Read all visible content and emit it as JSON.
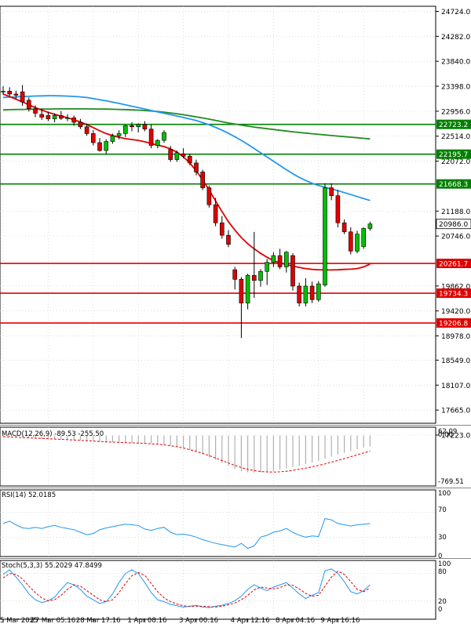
{
  "chart_data": [
    {
      "type": "candlestick",
      "panel": "price",
      "y_ticks": [
        24724.0,
        24282.0,
        23840.0,
        23398.0,
        22956.0,
        22514.0,
        22072.0,
        21188.0,
        20746.0,
        19862.0,
        19420.0,
        18978.0,
        18549.0,
        18107.0,
        17665.0,
        17223.0
      ],
      "ylim": [
        17223,
        24724
      ],
      "current_price": "20986.0",
      "grid": true,
      "horizontal_levels": [
        {
          "label": "22723.2",
          "value": 22723.2,
          "color": "#008000"
        },
        {
          "label": "22195.7",
          "value": 22195.7,
          "color": "#008000"
        },
        {
          "label": "21668.3",
          "value": 21668.3,
          "color": "#008000"
        },
        {
          "label": "20261.7",
          "value": 20261.7,
          "color": "#e00000"
        },
        {
          "label": "19734.3",
          "value": 19734.3,
          "color": "#e00000"
        },
        {
          "label": "19206.8",
          "value": 19206.8,
          "color": "#e00000"
        }
      ],
      "candles": [
        {
          "o": 23300,
          "h": 23400,
          "l": 23250,
          "c": 23310
        },
        {
          "o": 23310,
          "h": 23380,
          "l": 23220,
          "c": 23260
        },
        {
          "o": 23260,
          "h": 23320,
          "l": 23180,
          "c": 23240
        },
        {
          "o": 23300,
          "h": 23420,
          "l": 23050,
          "c": 23120
        },
        {
          "o": 23150,
          "h": 23200,
          "l": 22950,
          "c": 23000
        },
        {
          "o": 23000,
          "h": 23060,
          "l": 22850,
          "c": 22920
        },
        {
          "o": 22900,
          "h": 23000,
          "l": 22800,
          "c": 22850
        },
        {
          "o": 22880,
          "h": 22950,
          "l": 22780,
          "c": 22820
        },
        {
          "o": 22820,
          "h": 22920,
          "l": 22760,
          "c": 22880
        },
        {
          "o": 22880,
          "h": 22960,
          "l": 22800,
          "c": 22830
        },
        {
          "o": 22830,
          "h": 22900,
          "l": 22780,
          "c": 22840
        },
        {
          "o": 22840,
          "h": 22880,
          "l": 22700,
          "c": 22760
        },
        {
          "o": 22760,
          "h": 22820,
          "l": 22640,
          "c": 22680
        },
        {
          "o": 22680,
          "h": 22740,
          "l": 22520,
          "c": 22560
        },
        {
          "o": 22560,
          "h": 22620,
          "l": 22350,
          "c": 22400
        },
        {
          "o": 22400,
          "h": 22480,
          "l": 22240,
          "c": 22260
        },
        {
          "o": 22260,
          "h": 22460,
          "l": 22200,
          "c": 22420
        },
        {
          "o": 22420,
          "h": 22560,
          "l": 22380,
          "c": 22520
        },
        {
          "o": 22520,
          "h": 22620,
          "l": 22460,
          "c": 22560
        },
        {
          "o": 22560,
          "h": 22720,
          "l": 22500,
          "c": 22700
        },
        {
          "o": 22700,
          "h": 22760,
          "l": 22600,
          "c": 22680
        },
        {
          "o": 22680,
          "h": 22740,
          "l": 22580,
          "c": 22720
        },
        {
          "o": 22720,
          "h": 22780,
          "l": 22600,
          "c": 22640
        },
        {
          "o": 22640,
          "h": 22720,
          "l": 22300,
          "c": 22350
        },
        {
          "o": 22350,
          "h": 22460,
          "l": 22300,
          "c": 22440
        },
        {
          "o": 22440,
          "h": 22620,
          "l": 22400,
          "c": 22580
        },
        {
          "o": 22280,
          "h": 22340,
          "l": 22060,
          "c": 22100
        },
        {
          "o": 22100,
          "h": 22260,
          "l": 22060,
          "c": 22220
        },
        {
          "o": 22200,
          "h": 22300,
          "l": 22120,
          "c": 22160
        },
        {
          "o": 22160,
          "h": 22200,
          "l": 22000,
          "c": 22040
        },
        {
          "o": 22040,
          "h": 22100,
          "l": 21820,
          "c": 21880
        },
        {
          "o": 21880,
          "h": 21920,
          "l": 21560,
          "c": 21600
        },
        {
          "o": 21600,
          "h": 21640,
          "l": 21250,
          "c": 21300
        },
        {
          "o": 21300,
          "h": 21420,
          "l": 20920,
          "c": 20980
        },
        {
          "o": 20980,
          "h": 21100,
          "l": 20700,
          "c": 20760
        },
        {
          "o": 20760,
          "h": 20850,
          "l": 20550,
          "c": 20600
        },
        {
          "o": 20150,
          "h": 20200,
          "l": 19800,
          "c": 19980
        },
        {
          "o": 19980,
          "h": 20020,
          "l": 18940,
          "c": 19560
        },
        {
          "o": 19560,
          "h": 20080,
          "l": 19450,
          "c": 20050
        },
        {
          "o": 20050,
          "h": 20820,
          "l": 19650,
          "c": 19960
        },
        {
          "o": 19960,
          "h": 20160,
          "l": 19850,
          "c": 20120
        },
        {
          "o": 20120,
          "h": 20340,
          "l": 19880,
          "c": 20280
        },
        {
          "o": 20280,
          "h": 20460,
          "l": 20200,
          "c": 20400
        },
        {
          "o": 20400,
          "h": 20520,
          "l": 20160,
          "c": 20200
        },
        {
          "o": 20200,
          "h": 20480,
          "l": 20100,
          "c": 20460
        },
        {
          "o": 20400,
          "h": 20440,
          "l": 19780,
          "c": 19860
        },
        {
          "o": 19860,
          "h": 19920,
          "l": 19500,
          "c": 19560
        },
        {
          "o": 19560,
          "h": 20000,
          "l": 19500,
          "c": 19860
        },
        {
          "o": 19860,
          "h": 19940,
          "l": 19560,
          "c": 19620
        },
        {
          "o": 19620,
          "h": 19950,
          "l": 19580,
          "c": 19900
        },
        {
          "o": 19880,
          "h": 21680,
          "l": 19850,
          "c": 21600
        },
        {
          "o": 21600,
          "h": 21680,
          "l": 21380,
          "c": 21460
        },
        {
          "o": 21460,
          "h": 21560,
          "l": 20900,
          "c": 20980
        },
        {
          "o": 20980,
          "h": 21040,
          "l": 20780,
          "c": 20820
        },
        {
          "o": 20820,
          "h": 20900,
          "l": 20420,
          "c": 20480
        },
        {
          "o": 20480,
          "h": 20840,
          "l": 20440,
          "c": 20780
        },
        {
          "o": 20560,
          "h": 20900,
          "l": 20520,
          "c": 20880
        },
        {
          "o": 20880,
          "h": 21000,
          "l": 20840,
          "c": 20960
        }
      ],
      "ma_fast": {
        "color": "#e00000",
        "values": [
          23260,
          23215,
          23170,
          23120,
          23070,
          23020,
          22975,
          22935,
          22900,
          22870,
          22840,
          22805,
          22765,
          22720,
          22665,
          22610,
          22560,
          22525,
          22495,
          22470,
          22455,
          22440,
          22415,
          22385,
          22355,
          22330,
          22290,
          22230,
          22150,
          22040,
          21900,
          21740,
          21560,
          21370,
          21180,
          21000,
          20850,
          20720,
          20610,
          20520,
          20440,
          20370,
          20310,
          20270,
          20240,
          20215,
          20190,
          20170,
          20155,
          20150,
          20145,
          20145,
          20148,
          20155,
          20160,
          20170,
          20200,
          20250
        ]
      },
      "ma_mid": {
        "color": "#2196f3",
        "values": [
          23200,
          23205,
          23210,
          23215,
          23220,
          23225,
          23228,
          23230,
          23230,
          23228,
          23224,
          23218,
          23210,
          23198,
          23180,
          23160,
          23140,
          23118,
          23095,
          23070,
          23045,
          23020,
          22995,
          22970,
          22945,
          22920,
          22895,
          22870,
          22845,
          22820,
          22790,
          22755,
          22715,
          22670,
          22620,
          22565,
          22505,
          22440,
          22370,
          22295,
          22220,
          22145,
          22070,
          21995,
          21920,
          21850,
          21785,
          21730,
          21680,
          21640,
          21610,
          21580,
          21550,
          21515,
          21480,
          21445,
          21410,
          21375
        ]
      },
      "ma_slow": {
        "color": "#228b22",
        "values": [
          22980,
          22983,
          22986,
          22988,
          22990,
          22992,
          22994,
          22995,
          22996,
          22997,
          22998,
          22998,
          22998,
          22997,
          22996,
          22995,
          22993,
          22991,
          22988,
          22985,
          22980,
          22975,
          22968,
          22960,
          22950,
          22938,
          22925,
          22910,
          22893,
          22875,
          22856,
          22836,
          22815,
          22793,
          22770,
          22748,
          22728,
          22710,
          22692,
          22675,
          22660,
          22646,
          22632,
          22618,
          22605,
          22592,
          22580,
          22568,
          22557,
          22546,
          22536,
          22526,
          22516,
          22506,
          22496,
          22486,
          22476,
          22466
        ]
      }
    },
    {
      "type": "bar",
      "panel": "macd",
      "label": "MACD(12,26,9) -89.53 -255.50",
      "y_ticks": [
        "62.09",
        "0.00",
        "-769.51"
      ],
      "ylim": [
        -769.51,
        62.09
      ],
      "histogram": [
        -20,
        -25,
        -30,
        -35,
        -40,
        -45,
        -50,
        -55,
        -60,
        -66,
        -72,
        -78,
        -84,
        -90,
        -96,
        -102,
        -108,
        -112,
        -116,
        -118,
        -120,
        -122,
        -126,
        -132,
        -140,
        -150,
        -165,
        -185,
        -210,
        -240,
        -275,
        -315,
        -360,
        -410,
        -460,
        -510,
        -560,
        -600,
        -620,
        -625,
        -620,
        -610,
        -595,
        -575,
        -555,
        -530,
        -505,
        -480,
        -455,
        -425,
        -390,
        -355,
        -320,
        -290,
        -260,
        -230,
        -205,
        -185
      ],
      "signal": {
        "color": "#e00000",
        "values": [
          -20,
          -24,
          -28,
          -33,
          -38,
          -43,
          -48,
          -53,
          -58,
          -63,
          -69,
          -75,
          -81,
          -87,
          -93,
          -99,
          -105,
          -110,
          -115,
          -119,
          -123,
          -127,
          -132,
          -138,
          -146,
          -156,
          -170,
          -188,
          -210,
          -236,
          -266,
          -300,
          -338,
          -378,
          -420,
          -462,
          -502,
          -538,
          -568,
          -590,
          -604,
          -612,
          -614,
          -610,
          -600,
          -586,
          -568,
          -548,
          -526,
          -502,
          -476,
          -448,
          -418,
          -388,
          -356,
          -324,
          -292,
          -260
        ]
      }
    },
    {
      "type": "line",
      "panel": "rsi",
      "label": "RSI(14) 52.0185",
      "y_ticks": [
        "100",
        "70",
        "30",
        "0"
      ],
      "ylim": [
        0,
        100
      ],
      "series": [
        {
          "color": "#2196f3",
          "values": [
            52,
            56,
            50,
            45,
            44,
            46,
            44,
            47,
            49,
            46,
            44,
            42,
            38,
            34,
            36,
            42,
            45,
            47,
            49,
            51,
            50,
            49,
            43,
            41,
            44,
            46,
            38,
            34,
            35,
            33,
            30,
            26,
            23,
            20,
            18,
            16,
            14,
            20,
            12,
            16,
            30,
            33,
            38,
            40,
            44,
            38,
            33,
            30,
            32,
            31,
            60,
            58,
            52,
            50,
            48,
            50,
            51,
            52
          ]
        }
      ]
    },
    {
      "type": "line",
      "panel": "stochastic",
      "label": "Stoch(5,3,3) 55.2029 47.8499",
      "y_ticks": [
        "100",
        "80",
        "20",
        "0"
      ],
      "ylim": [
        0,
        100
      ],
      "series": [
        {
          "color": "#2196f3",
          "values": [
            78,
            88,
            72,
            55,
            35,
            22,
            16,
            20,
            28,
            45,
            60,
            55,
            45,
            30,
            22,
            14,
            18,
            35,
            60,
            80,
            88,
            80,
            60,
            38,
            22,
            18,
            12,
            9,
            6,
            8,
            10,
            6,
            5,
            8,
            10,
            14,
            20,
            30,
            45,
            55,
            48,
            42,
            50,
            55,
            60,
            48,
            35,
            25,
            32,
            38,
            86,
            90,
            80,
            62,
            40,
            35,
            42,
            55
          ]
        },
        {
          "color": "#e00000",
          "values": [
            70,
            80,
            78,
            68,
            52,
            38,
            26,
            20,
            22,
            32,
            45,
            55,
            52,
            42,
            32,
            22,
            18,
            22,
            38,
            58,
            75,
            82,
            76,
            58,
            40,
            26,
            18,
            13,
            9,
            7,
            8,
            8,
            7,
            6,
            8,
            11,
            15,
            22,
            32,
            44,
            50,
            48,
            46,
            49,
            55,
            54,
            46,
            36,
            30,
            32,
            52,
            72,
            85,
            78,
            62,
            45,
            40,
            48
          ]
        }
      ]
    }
  ],
  "x_labels": [
    "5 Mar 2025",
    "27 Mar 05:16",
    "28 Mar 17:16",
    "1 Apr 08:16",
    "3 Apr 00:16",
    "4 Apr 12:16",
    "8 Apr 04:16",
    "9 Apr 16:16"
  ],
  "x_label_indices": [
    0,
    7,
    14,
    22,
    30,
    38,
    45,
    52
  ]
}
